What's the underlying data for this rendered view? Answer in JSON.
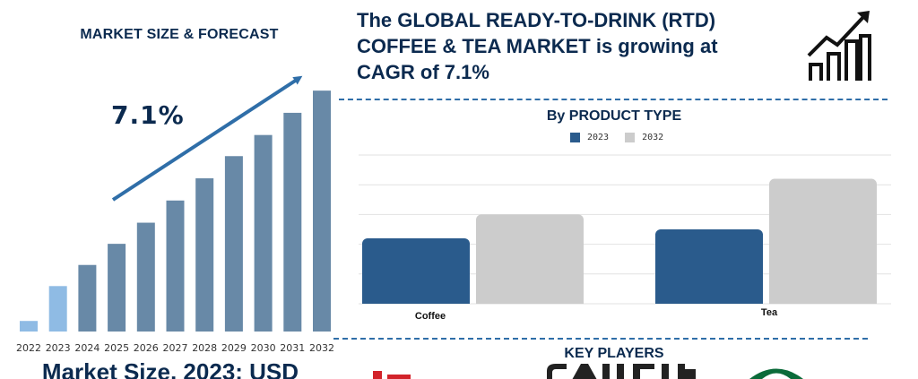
{
  "left_panel": {
    "title": "MARKET SIZE & FORECAST",
    "cagr_label": "7.1%",
    "caption": "Market Size, 2023: USD"
  },
  "headline": "The GLOBAL READY-TO-DRINK (RTD) COFFEE & TEA MARKET is growing at CAGR of 7.1%",
  "product_panel": {
    "title": "By PRODUCT TYPE"
  },
  "key_players": {
    "title": "KEY PLAYERS"
  },
  "colors": {
    "navy": "#0b2a4f",
    "bar_forecast": "#6889a7",
    "bar_history": "#8fbbe4",
    "series_2023": "#2a5b8c",
    "series_2032": "#cccccc",
    "arrow": "#2f6ea8"
  },
  "chart_data": [
    {
      "type": "bar",
      "title": "MARKET SIZE & FORECAST",
      "categories": [
        "2022",
        "2023",
        "2024",
        "2025",
        "2026",
        "2027",
        "2028",
        "2029",
        "2030",
        "2031",
        "2032"
      ],
      "values": [
        1.0,
        4.3,
        6.3,
        8.3,
        10.3,
        12.4,
        14.5,
        16.6,
        18.6,
        20.7,
        22.8
      ],
      "highlighted_categories": [
        "2022",
        "2023"
      ],
      "ylim": [
        0,
        24
      ],
      "grid": false,
      "annotation": "7.1%"
    },
    {
      "type": "bar",
      "title": "By PRODUCT TYPE",
      "categories": [
        "Coffee",
        "Tea"
      ],
      "series": [
        {
          "name": "2023",
          "values": [
            44,
            50
          ]
        },
        {
          "name": "2032",
          "values": [
            60,
            84
          ]
        }
      ],
      "ylim": [
        0,
        100
      ],
      "grid": true,
      "legend": "top-center"
    }
  ]
}
